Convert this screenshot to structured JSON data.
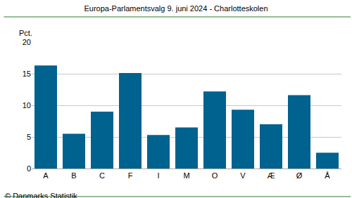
{
  "chart_data": {
    "type": "bar",
    "title": "Europa-Parlamentsvalg 9. juni 2024 - Charlotteskolen",
    "y_label": "Pct.",
    "source": "© Danmarks Statistik",
    "categories": [
      "A",
      "B",
      "C",
      "F",
      "I",
      "M",
      "O",
      "V",
      "Æ",
      "Ø",
      "Å"
    ],
    "values": [
      16.3,
      5.5,
      9.0,
      15.1,
      5.3,
      6.5,
      12.2,
      9.3,
      7.0,
      11.6,
      2.5
    ],
    "color": "#00628f",
    "ylim": [
      0,
      20
    ],
    "yticks": [
      0,
      5,
      10,
      15,
      20
    ],
    "grid": true
  }
}
